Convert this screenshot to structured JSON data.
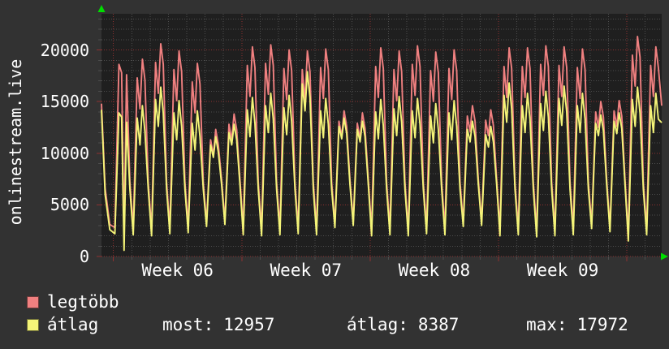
{
  "chart": {
    "vertical_title": "onlinestream.live"
  },
  "footer": {
    "legend": [
      {
        "label": "legtöbb",
        "color": "#f08080"
      },
      {
        "label": "átlag",
        "color": "#f4f478"
      }
    ],
    "stats": [
      {
        "label": "most:",
        "value": "12957"
      },
      {
        "label": "átlag:",
        "value": "8387"
      },
      {
        "label": "max:",
        "value": "17972"
      }
    ]
  },
  "chart_data": {
    "type": "line",
    "title": "onlinestream.live",
    "xlabel": "",
    "ylabel": "",
    "legend_position": "bottom-left",
    "grid": true,
    "colors": {
      "legtobb": "#f08080",
      "atlag": "#f4f478",
      "grid_minor": "#4d4d4d",
      "grid_major": "#8e3030",
      "plot_bg": "#1f1f1f",
      "outer_bg": "#323232",
      "text": "#ffffff",
      "axis_arrow": "#00dd00"
    },
    "y_axis": {
      "ticks": [
        0,
        5000,
        10000,
        15000,
        20000
      ],
      "minor_step": 1000,
      "max": 23500
    },
    "x_axis": {
      "labels": [
        {
          "text": "Week 06",
          "day_center": 3.5
        },
        {
          "text": "Week 07",
          "day_center": 10.5
        },
        {
          "text": "Week 08",
          "day_center": 17.5
        },
        {
          "text": "Week 09",
          "day_center": 24.5
        }
      ],
      "week_start_days": [
        0,
        7,
        14,
        21,
        28
      ],
      "days_total": 30,
      "t_start": -0.65,
      "t_end": 29.9
    },
    "series_names": [
      "legtöbb",
      "átlag"
    ],
    "sample_offsets": [
      0.08,
      0.3,
      0.45,
      0.58,
      0.72,
      0.9
    ],
    "lead": {
      "t": [
        -0.65,
        -0.45,
        -0.2
      ],
      "legtobb": [
        14800,
        6600,
        3100
      ],
      "atlag": [
        14200,
        6000,
        2600
      ]
    },
    "days": [
      {
        "legtobb": [
          2800,
          18600,
          17800,
          2000,
          17600,
          7200
        ],
        "atlag": [
          2200,
          13900,
          13500,
          600,
          13000,
          6500
        ]
      },
      {
        "legtobb": [
          2700,
          17300,
          14300,
          19100,
          17100,
          7200
        ],
        "atlag": [
          2100,
          13400,
          10800,
          14600,
          12100,
          6500
        ]
      },
      {
        "legtobb": [
          2600,
          18800,
          15800,
          20600,
          18600,
          7200
        ],
        "atlag": [
          2000,
          15200,
          12600,
          16400,
          13900,
          6500
        ]
      },
      {
        "legtobb": [
          2800,
          18100,
          15100,
          19900,
          17900,
          7200
        ],
        "atlag": [
          2200,
          13900,
          11300,
          15100,
          12600,
          6500
        ]
      },
      {
        "legtobb": [
          2900,
          16900,
          13900,
          18700,
          16700,
          7200
        ],
        "atlag": [
          2300,
          12900,
          10300,
          14100,
          11600,
          6500
        ]
      },
      {
        "legtobb": [
          3300,
          11300,
          9800,
          12300,
          10800,
          7500
        ],
        "atlag": [
          2900,
          10800,
          9600,
          11600,
          10100,
          7000
        ]
      },
      {
        "legtobb": [
          3500,
          12800,
          11300,
          13800,
          12300,
          7500
        ],
        "atlag": [
          3100,
          12000,
          10800,
          12800,
          11300,
          7000
        ]
      },
      {
        "legtobb": [
          2700,
          18500,
          15500,
          20300,
          18300,
          7200
        ],
        "atlag": [
          2100,
          14200,
          11600,
          15400,
          12900,
          6500
        ]
      },
      {
        "legtobb": [
          2600,
          18700,
          15700,
          20500,
          18500,
          7200
        ],
        "atlag": [
          2000,
          14600,
          12000,
          15800,
          13300,
          6500
        ]
      },
      {
        "legtobb": [
          2700,
          18200,
          15200,
          20000,
          18000,
          7200
        ],
        "atlag": [
          2100,
          14400,
          11800,
          15600,
          13100,
          6500
        ]
      },
      {
        "legtobb": [
          2800,
          18100,
          15100,
          19900,
          17900,
          7200
        ],
        "atlag": [
          2200,
          16700,
          14100,
          17900,
          15400,
          6500
        ]
      },
      {
        "legtobb": [
          2700,
          18300,
          15300,
          20100,
          18100,
          7200
        ],
        "atlag": [
          2100,
          14100,
          11500,
          15300,
          12800,
          6500
        ]
      },
      {
        "legtobb": [
          3200,
          13100,
          11600,
          14100,
          12600,
          7500
        ],
        "atlag": [
          2800,
          12600,
          11400,
          13400,
          11900,
          7000
        ]
      },
      {
        "legtobb": [
          3400,
          12900,
          11400,
          13900,
          12400,
          7500
        ],
        "atlag": [
          3000,
          12300,
          11100,
          13100,
          11600,
          7000
        ]
      },
      {
        "legtobb": [
          2600,
          18400,
          15400,
          20200,
          18200,
          7200
        ],
        "atlag": [
          2000,
          14000,
          11400,
          15200,
          12700,
          6500
        ]
      },
      {
        "legtobb": [
          2700,
          18100,
          15100,
          19900,
          17900,
          7200
        ],
        "atlag": [
          2100,
          14300,
          11700,
          15500,
          13000,
          6500
        ]
      },
      {
        "legtobb": [
          2600,
          18600,
          15600,
          20400,
          18400,
          7200
        ],
        "atlag": [
          2000,
          14100,
          11500,
          15300,
          12800,
          6500
        ]
      },
      {
        "legtobb": [
          2800,
          18000,
          15000,
          19800,
          17800,
          7200
        ],
        "atlag": [
          2200,
          13600,
          11000,
          14800,
          12300,
          6500
        ]
      },
      {
        "legtobb": [
          2700,
          18200,
          15200,
          20000,
          18000,
          7200
        ],
        "atlag": [
          2100,
          13900,
          11300,
          15100,
          12600,
          6500
        ]
      },
      {
        "legtobb": [
          3300,
          13600,
          12100,
          14600,
          13100,
          7500
        ],
        "atlag": [
          2900,
          12300,
          11100,
          13100,
          11600,
          7000
        ]
      },
      {
        "legtobb": [
          3400,
          13200,
          11700,
          14200,
          12700,
          7500
        ],
        "atlag": [
          3000,
          11800,
          10600,
          12600,
          11100,
          7000
        ]
      },
      {
        "legtobb": [
          2600,
          18400,
          15400,
          20200,
          18200,
          7200
        ],
        "atlag": [
          2000,
          15600,
          13000,
          16800,
          14300,
          6500
        ]
      },
      {
        "legtobb": [
          2700,
          18400,
          15400,
          20200,
          18200,
          7200
        ],
        "atlag": [
          2100,
          14600,
          12000,
          15800,
          13300,
          6500
        ]
      },
      {
        "legtobb": [
          2500,
          18600,
          15600,
          20400,
          18400,
          7200
        ],
        "atlag": [
          1900,
          14800,
          12200,
          16000,
          13500,
          6500
        ]
      },
      {
        "legtobb": [
          2600,
          18500,
          15500,
          20300,
          18300,
          7200
        ],
        "atlag": [
          2000,
          15300,
          12700,
          16500,
          14000,
          6500
        ]
      },
      {
        "legtobb": [
          2700,
          18300,
          15300,
          20100,
          18100,
          7200
        ],
        "atlag": [
          2100,
          14600,
          12000,
          15800,
          13300,
          6500
        ]
      },
      {
        "legtobb": [
          3100,
          14000,
          12500,
          15000,
          13500,
          7500
        ],
        "atlag": [
          2700,
          12900,
          11700,
          13700,
          12200,
          7000
        ]
      },
      {
        "legtobb": [
          2800,
          14100,
          12600,
          15100,
          13600,
          7500
        ],
        "atlag": [
          2400,
          13100,
          11900,
          13900,
          12400,
          7000
        ]
      },
      {
        "legtobb": [
          2100,
          19500,
          16500,
          21300,
          19300,
          7200
        ],
        "atlag": [
          1500,
          15200,
          12600,
          16400,
          13900,
          6500
        ]
      },
      {
        "legtobb": [
          2700,
          18500,
          15500,
          20300,
          18300,
          14600
        ],
        "atlag": [
          2100,
          14600,
          12000,
          15800,
          13300,
          12957
        ]
      }
    ]
  }
}
